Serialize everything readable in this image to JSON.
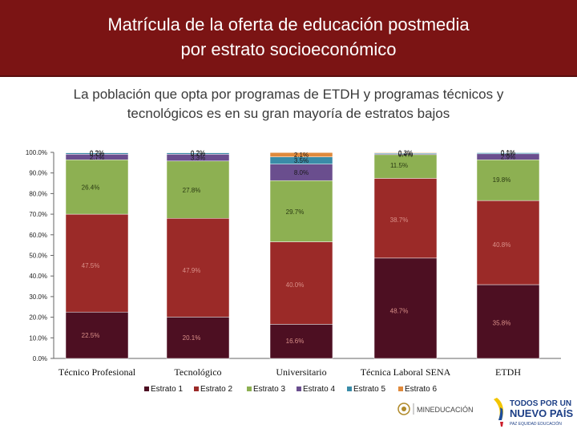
{
  "header": {
    "title_line1": "Matrícula de la oferta de educación postmedia",
    "title_line2": "por estrato socioeconómico",
    "subtitle_line1": "La población que opta por programas de ETDH y programas técnicos y",
    "subtitle_line2": "tecnológicos es en su gran mayoría de estratos bajos"
  },
  "colors": {
    "Estrato 1": "#4d0f22",
    "Estrato 2": "#9b2a28",
    "Estrato 3": "#8db052",
    "Estrato 4": "#6a4e8e",
    "Estrato 5": "#3a8ca8",
    "Estrato 6": "#e08a3c"
  },
  "chart_data": {
    "type": "bar",
    "stacked": true,
    "categories": [
      "Técnico Profesional",
      "Tecnológico",
      "Universitario",
      "Técnica Laboral SENA",
      "ETDH"
    ],
    "series": [
      {
        "name": "Estrato 1",
        "values": [
          22.5,
          20.1,
          16.6,
          48.7,
          35.8
        ]
      },
      {
        "name": "Estrato 2",
        "values": [
          47.5,
          47.9,
          40.0,
          38.7,
          40.8
        ]
      },
      {
        "name": "Estrato 3",
        "values": [
          26.4,
          27.8,
          29.7,
          11.5,
          19.8
        ]
      },
      {
        "name": "Estrato 4",
        "values": [
          2.7,
          3.3,
          8.0,
          0.4,
          2.9
        ]
      },
      {
        "name": "Estrato 5",
        "values": [
          0.7,
          0.7,
          3.5,
          0.4,
          0.6
        ]
      },
      {
        "name": "Estrato 6",
        "values": [
          0.2,
          0.2,
          2.1,
          0.3,
          0.1
        ]
      }
    ],
    "segment_labels": [
      [
        "22.5%",
        "47.5%",
        "26.4%",
        "2.7%",
        "0.7%",
        "0.2%"
      ],
      [
        "20.1%",
        "47.9%",
        "27.8%",
        "3.3%",
        "0.7%",
        "0.2%"
      ],
      [
        "16.6%",
        "40.0%",
        "29.7%",
        "8.0%",
        "3.5%",
        "2.1%"
      ],
      [
        "48.7%",
        "38.7%",
        "11.5%",
        "0.4%",
        "0.4%",
        "0.3%"
      ],
      [
        "35.8%",
        "40.8%",
        "19.8%",
        "2.9%",
        "0.6%",
        "0.1%"
      ]
    ],
    "y_ticks": [
      "0.0%",
      "10.0%",
      "20.0%",
      "30.0%",
      "40.0%",
      "50.0%",
      "60.0%",
      "70.0%",
      "80.0%",
      "90.0%",
      "100.0%"
    ],
    "ylim": [
      0,
      100
    ],
    "legend_position": "bottom",
    "grid": false
  },
  "logos": {
    "ministry": "MINEDUCACIÓN",
    "gov_line1": "TODOS POR UN",
    "gov_line2": "NUEVO PAÍS",
    "gov_line3": "PAZ EQUIDAD EDUCACIÓN"
  }
}
